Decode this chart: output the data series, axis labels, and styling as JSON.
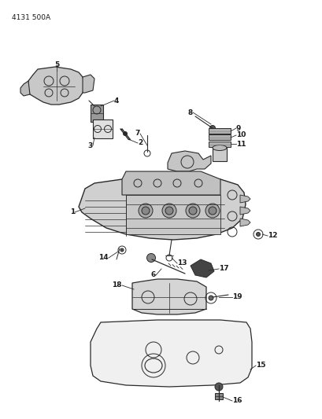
{
  "title": "4131 500A",
  "bg_color": "#ffffff",
  "line_color": "#2a2a2a",
  "label_color": "#1a1a1a",
  "label_fontsize": 6.5,
  "title_fontsize": 6.5
}
